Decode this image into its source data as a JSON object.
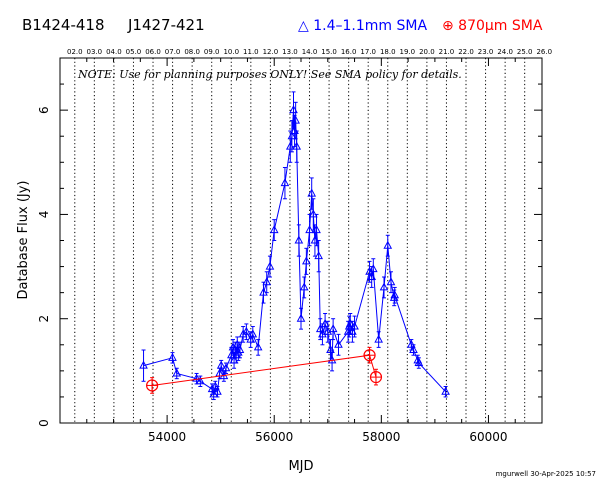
{
  "header": {
    "source_name": "B1424-418",
    "alt_name": "J1427-421",
    "legend_blue": "△ 1.4–1.1mm SMA",
    "legend_red": "⊕ 870μm SMA"
  },
  "footer_credit": "mgurwell 30-Apr-2025 10:57",
  "note": "NOTE: Use for planning purposes ONLY! See SMA policy for details.",
  "chart_data": {
    "type": "scatter",
    "xlabel": "MJD",
    "ylabel": "Database Flux (Jy)",
    "xlim": [
      52000,
      61000
    ],
    "ylim": [
      0,
      7
    ],
    "x_ticks": [
      54000,
      56000,
      58000,
      60000
    ],
    "y_ticks": [
      0,
      2,
      4,
      6
    ],
    "top_axis_labels": [
      "02.0",
      "03.0",
      "04.0",
      "05.0",
      "06.0",
      "07.0",
      "08.0",
      "09.0",
      "10.0",
      "11.0",
      "12.0",
      "13.0",
      "14.0",
      "15.0",
      "16.0",
      "17.0",
      "18.0",
      "19.0",
      "20.0",
      "21.0",
      "22.0",
      "23.0",
      "24.0",
      "25.0",
      "26.0"
    ],
    "top_axis_start_mjd": 52276,
    "top_axis_step_days": 365.25,
    "series": [
      {
        "name": "1.4–1.1mm SMA",
        "color": "#0000ff",
        "marker": "triangle",
        "connected": true,
        "x": [
          53560,
          54100,
          54180,
          54550,
          54620,
          54840,
          54870,
          54900,
          54940,
          54980,
          55010,
          55060,
          55100,
          55200,
          55230,
          55250,
          55270,
          55290,
          55310,
          55330,
          55360,
          55420,
          55480,
          55560,
          55600,
          55700,
          55800,
          55860,
          55920,
          56000,
          56200,
          56300,
          56330,
          56360,
          56380,
          56400,
          56420,
          56460,
          56500,
          56560,
          56600,
          56660,
          56700,
          56730,
          56760,
          56790,
          56830,
          56860,
          56900,
          56950,
          57000,
          57050,
          57080,
          57100,
          57200,
          57380,
          57400,
          57420,
          57460,
          57500,
          57780,
          57820,
          57850,
          57950,
          58050,
          58120,
          58180,
          58240,
          58250,
          58560,
          58600,
          58680,
          58700,
          59200
        ],
        "y": [
          1.1,
          1.25,
          0.95,
          0.85,
          0.8,
          0.65,
          0.55,
          0.7,
          0.6,
          0.95,
          1.1,
          0.9,
          1.05,
          1.3,
          1.45,
          1.2,
          1.4,
          1.3,
          1.5,
          1.35,
          1.4,
          1.7,
          1.75,
          1.6,
          1.7,
          1.45,
          2.5,
          2.7,
          3.0,
          3.7,
          4.6,
          5.3,
          5.5,
          6.0,
          5.6,
          5.8,
          5.3,
          3.5,
          2.0,
          2.6,
          3.1,
          3.7,
          4.4,
          4.0,
          3.5,
          3.7,
          3.2,
          1.8,
          1.7,
          1.9,
          1.75,
          1.4,
          1.2,
          1.8,
          1.5,
          1.75,
          1.85,
          1.9,
          1.75,
          1.85,
          2.9,
          2.8,
          2.95,
          1.6,
          2.6,
          3.4,
          2.7,
          2.4,
          2.45,
          1.5,
          1.4,
          1.2,
          1.15,
          0.6
        ],
        "errors": [
          0.3,
          0.1,
          0.1,
          0.1,
          0.1,
          0.1,
          0.1,
          0.1,
          0.1,
          0.1,
          0.1,
          0.1,
          0.1,
          0.15,
          0.15,
          0.15,
          0.15,
          0.15,
          0.15,
          0.15,
          0.15,
          0.15,
          0.15,
          0.15,
          0.15,
          0.15,
          0.2,
          0.2,
          0.2,
          0.2,
          0.3,
          0.3,
          0.3,
          0.35,
          0.3,
          0.35,
          0.3,
          0.3,
          0.2,
          0.2,
          0.25,
          0.3,
          0.3,
          0.3,
          0.3,
          0.3,
          0.3,
          0.2,
          0.2,
          0.2,
          0.2,
          0.2,
          0.2,
          0.2,
          0.2,
          0.2,
          0.2,
          0.2,
          0.2,
          0.2,
          0.2,
          0.2,
          0.2,
          0.15,
          0.2,
          0.2,
          0.2,
          0.15,
          0.15,
          0.1,
          0.1,
          0.1,
          0.1,
          0.1
        ]
      },
      {
        "name": "870μm SMA",
        "color": "#ff0000",
        "marker": "circle-plus",
        "connected": true,
        "x": [
          53720,
          57780,
          57900
        ],
        "y": [
          0.72,
          1.3,
          0.88
        ],
        "errors": [
          0.15,
          0.15,
          0.15
        ]
      }
    ]
  }
}
